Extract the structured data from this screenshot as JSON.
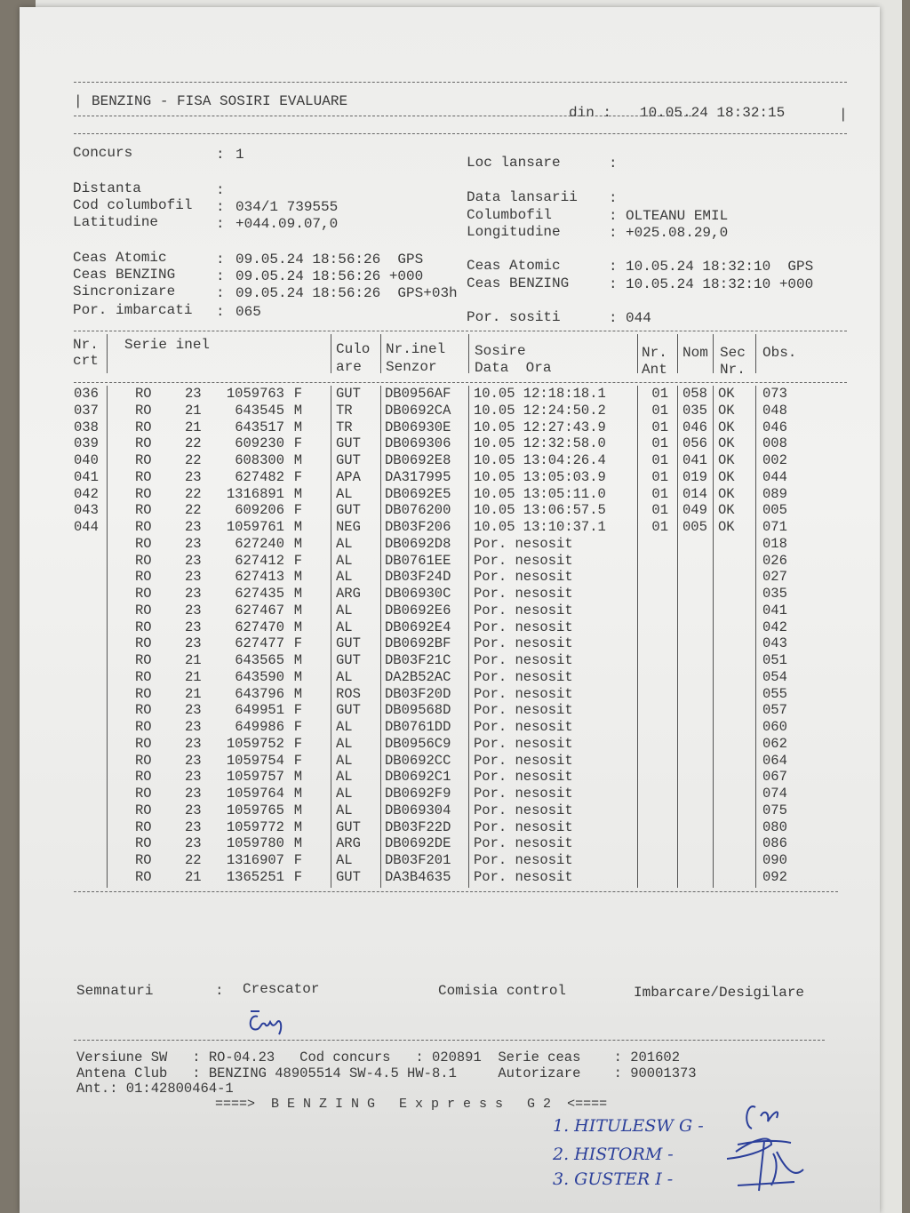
{
  "header": {
    "title": "BENZING - FISA SOSIRI EVALUARE",
    "din_label": "din :",
    "din_value": "10.05.24 18:32:15"
  },
  "info_left": [
    {
      "label": "Concurs",
      "value": "1"
    },
    {
      "label": "Distanta",
      "value": ""
    },
    {
      "label": "Cod columbofil",
      "value": "034/1 739555"
    },
    {
      "label": "Latitudine",
      "value": "+044.09.07,0"
    },
    {
      "label": "Ceas Atomic",
      "value": "09.05.24 18:56:26  GPS"
    },
    {
      "label": "Ceas BENZING",
      "value": "09.05.24 18:56:26 +000"
    },
    {
      "label": "Sincronizare",
      "value": "09.05.24 18:56:26  GPS+03h"
    },
    {
      "label": "Por. imbarcati",
      "value": "065"
    }
  ],
  "info_right": [
    {
      "label": "Loc lansare",
      "value": ""
    },
    {
      "label": "Data lansarii",
      "value": ""
    },
    {
      "label": "Columbofil",
      "value": "OLTEANU EMIL"
    },
    {
      "label": "Longitudine",
      "value": "+025.08.29,0"
    },
    {
      "label": "Ceas Atomic",
      "value": "10.05.24 18:32:10  GPS"
    },
    {
      "label": "Ceas BENZING",
      "value": "10.05.24 18:32:10 +000"
    },
    {
      "label": "Por. sositi",
      "value": "044"
    }
  ],
  "table": {
    "headers": {
      "nr1": "Nr.",
      "nr2": "crt",
      "serie": "Serie inel",
      "cul1": "Culo",
      "cul2": "are",
      "sen1": "Nr.inel",
      "sen2": "Senzor",
      "sos1": "Sosire",
      "sos2": "Data  Ora",
      "ant1": "Nr.",
      "ant2": "Ant",
      "nom": "Nom",
      "sec1": "Sec",
      "sec2": "Nr.",
      "obs": "Obs."
    },
    "rows": [
      [
        "036",
        "RO",
        "23",
        "1059763",
        "F",
        "GUT",
        "DB0956AF",
        "10.05 12:18:18.1",
        "01",
        "058",
        "OK",
        "073"
      ],
      [
        "037",
        "RO",
        "21",
        "643545",
        "M",
        "TR",
        "DB0692CA",
        "10.05 12:24:50.2",
        "01",
        "035",
        "OK",
        "048"
      ],
      [
        "038",
        "RO",
        "21",
        "643517",
        "M",
        "TR",
        "DB06930E",
        "10.05 12:27:43.9",
        "01",
        "046",
        "OK",
        "046"
      ],
      [
        "039",
        "RO",
        "22",
        "609230",
        "F",
        "GUT",
        "DB069306",
        "10.05 12:32:58.0",
        "01",
        "056",
        "OK",
        "008"
      ],
      [
        "040",
        "RO",
        "22",
        "608300",
        "M",
        "GUT",
        "DB0692E8",
        "10.05 13:04:26.4",
        "01",
        "041",
        "OK",
        "002"
      ],
      [
        "041",
        "RO",
        "23",
        "627482",
        "F",
        "APA",
        "DA317995",
        "10.05 13:05:03.9",
        "01",
        "019",
        "OK",
        "044"
      ],
      [
        "042",
        "RO",
        "22",
        "1316891",
        "M",
        "AL",
        "DB0692E5",
        "10.05 13:05:11.0",
        "01",
        "014",
        "OK",
        "089"
      ],
      [
        "043",
        "RO",
        "22",
        "609206",
        "F",
        "GUT",
        "DB076200",
        "10.05 13:06:57.5",
        "01",
        "049",
        "OK",
        "005"
      ],
      [
        "044",
        "RO",
        "23",
        "1059761",
        "M",
        "NEG",
        "DB03F206",
        "10.05 13:10:37.1",
        "01",
        "005",
        "OK",
        "071"
      ],
      [
        "",
        "RO",
        "23",
        "627240",
        "M",
        "AL",
        "DB0692D8",
        "Por. nesosit",
        "",
        "",
        "",
        "018"
      ],
      [
        "",
        "RO",
        "23",
        "627412",
        "F",
        "AL",
        "DB0761EE",
        "Por. nesosit",
        "",
        "",
        "",
        "026"
      ],
      [
        "",
        "RO",
        "23",
        "627413",
        "M",
        "AL",
        "DB03F24D",
        "Por. nesosit",
        "",
        "",
        "",
        "027"
      ],
      [
        "",
        "RO",
        "23",
        "627435",
        "M",
        "ARG",
        "DB06930C",
        "Por. nesosit",
        "",
        "",
        "",
        "035"
      ],
      [
        "",
        "RO",
        "23",
        "627467",
        "M",
        "AL",
        "DB0692E6",
        "Por. nesosit",
        "",
        "",
        "",
        "041"
      ],
      [
        "",
        "RO",
        "23",
        "627470",
        "M",
        "AL",
        "DB0692E4",
        "Por. nesosit",
        "",
        "",
        "",
        "042"
      ],
      [
        "",
        "RO",
        "23",
        "627477",
        "F",
        "GUT",
        "DB0692BF",
        "Por. nesosit",
        "",
        "",
        "",
        "043"
      ],
      [
        "",
        "RO",
        "21",
        "643565",
        "M",
        "GUT",
        "DB03F21C",
        "Por. nesosit",
        "",
        "",
        "",
        "051"
      ],
      [
        "",
        "RO",
        "21",
        "643590",
        "M",
        "AL",
        "DA2B52AC",
        "Por. nesosit",
        "",
        "",
        "",
        "054"
      ],
      [
        "",
        "RO",
        "21",
        "643796",
        "M",
        "ROS",
        "DB03F20D",
        "Por. nesosit",
        "",
        "",
        "",
        "055"
      ],
      [
        "",
        "RO",
        "23",
        "649951",
        "F",
        "GUT",
        "DB09568D",
        "Por. nesosit",
        "",
        "",
        "",
        "057"
      ],
      [
        "",
        "RO",
        "23",
        "649986",
        "F",
        "AL",
        "DB0761DD",
        "Por. nesosit",
        "",
        "",
        "",
        "060"
      ],
      [
        "",
        "RO",
        "23",
        "1059752",
        "F",
        "AL",
        "DB0956C9",
        "Por. nesosit",
        "",
        "",
        "",
        "062"
      ],
      [
        "",
        "RO",
        "23",
        "1059754",
        "F",
        "AL",
        "DB0692CC",
        "Por. nesosit",
        "",
        "",
        "",
        "064"
      ],
      [
        "",
        "RO",
        "23",
        "1059757",
        "M",
        "AL",
        "DB0692C1",
        "Por. nesosit",
        "",
        "",
        "",
        "067"
      ],
      [
        "",
        "RO",
        "23",
        "1059764",
        "M",
        "AL",
        "DB0692F9",
        "Por. nesosit",
        "",
        "",
        "",
        "074"
      ],
      [
        "",
        "RO",
        "23",
        "1059765",
        "M",
        "AL",
        "DB069304",
        "Por. nesosit",
        "",
        "",
        "",
        "075"
      ],
      [
        "",
        "RO",
        "23",
        "1059772",
        "M",
        "GUT",
        "DB03F22D",
        "Por. nesosit",
        "",
        "",
        "",
        "080"
      ],
      [
        "",
        "RO",
        "23",
        "1059780",
        "M",
        "ARG",
        "DB0692DE",
        "Por. nesosit",
        "",
        "",
        "",
        "086"
      ],
      [
        "",
        "RO",
        "22",
        "1316907",
        "F",
        "AL",
        "DB03F201",
        "Por. nesosit",
        "",
        "",
        "",
        "090"
      ],
      [
        "",
        "RO",
        "21",
        "1365251",
        "F",
        "GUT",
        "DA3B4635",
        "Por. nesosit",
        "",
        "",
        "",
        "092"
      ]
    ]
  },
  "signatures": {
    "label": "Semnaturi",
    "crescator": "Crescator",
    "comisia": "Comisia control",
    "imbarcare": "Imbarcare/Desigilare"
  },
  "footer": {
    "line1": "Versiune SW   : RO-04.23   Cod concurs   : 020891  Serie ceas    : 201602",
    "line2": "Antena Club   : BENZING 48905514 SW-4.5 HW-8.1     Autorizare    : 90001373",
    "line3": "Ant.: 01:42800464-1",
    "banner": "====>  B E N Z I N G   E x p r e s s   G 2  <===="
  },
  "handwritten": [
    "1. HITULESW G -",
    "2. HISTORM -",
    "3. GUSTER I -"
  ]
}
